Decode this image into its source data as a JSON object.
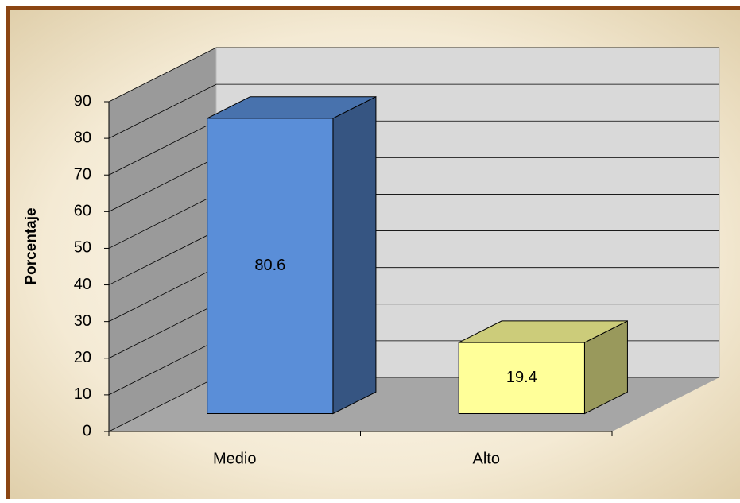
{
  "chart_data": {
    "type": "bar3d",
    "y_label": "Porcentaje",
    "categories": [
      "Medio",
      "Alto"
    ],
    "values": [
      80.6,
      19.4
    ],
    "colors": [
      "#5a8ed8",
      "#ffff99"
    ],
    "ylim": [
      0,
      90
    ],
    "yticks": [
      0,
      10,
      20,
      30,
      40,
      50,
      60,
      70,
      80,
      90
    ],
    "grid": true
  }
}
